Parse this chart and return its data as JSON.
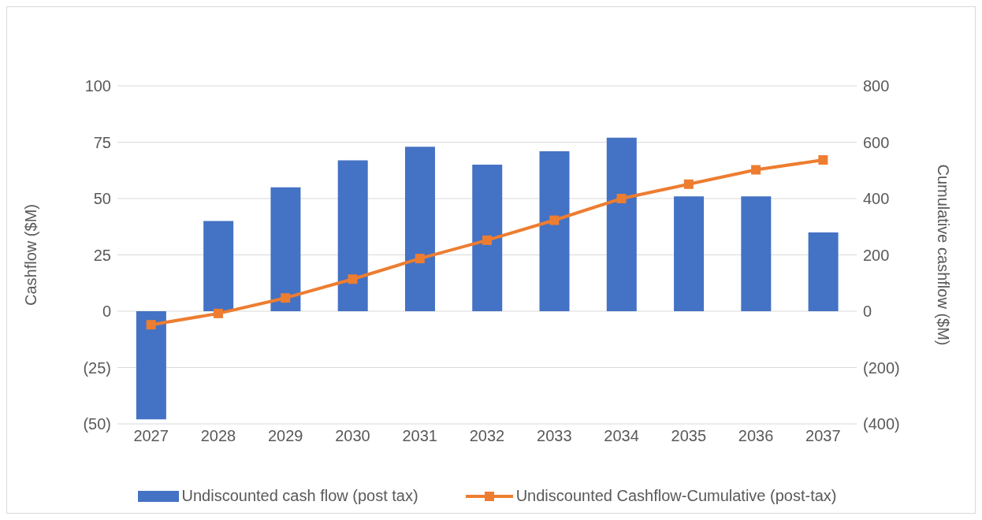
{
  "chart_data": {
    "type": "bar",
    "categories": [
      "2027",
      "2028",
      "2029",
      "2030",
      "2031",
      "2032",
      "2033",
      "2034",
      "2035",
      "2036",
      "2037"
    ],
    "series": [
      {
        "name": "Undiscounted cash flow (post tax)",
        "color": "#4472c4",
        "values": [
          -48,
          40,
          55,
          67,
          73,
          65,
          71,
          77,
          51,
          51,
          35
        ]
      },
      {
        "name": "Undiscounted Cashflow-Cumulative (post-tax)",
        "type": "line",
        "axis": "y2",
        "color": "#ed7d31",
        "marker": "square",
        "values": [
          -48,
          -8,
          47,
          114,
          187,
          252,
          323,
          400,
          451,
          502,
          537
        ]
      }
    ],
    "ylabel": "Cashflow ($M)",
    "y2label": "Cumulative cashflow ($M)",
    "ylim": [
      -50,
      100
    ],
    "yticks": [
      {
        "value": -50,
        "label": "(50)"
      },
      {
        "value": -25,
        "label": "(25)"
      },
      0,
      25,
      50,
      75,
      100
    ],
    "y2lim": [
      -400,
      800
    ],
    "y2ticks": [
      {
        "value": -400,
        "label": "(400)"
      },
      {
        "value": -200,
        "label": "(200)"
      },
      0,
      200,
      400,
      600,
      800
    ],
    "grid": "y",
    "legend": "bottom"
  }
}
